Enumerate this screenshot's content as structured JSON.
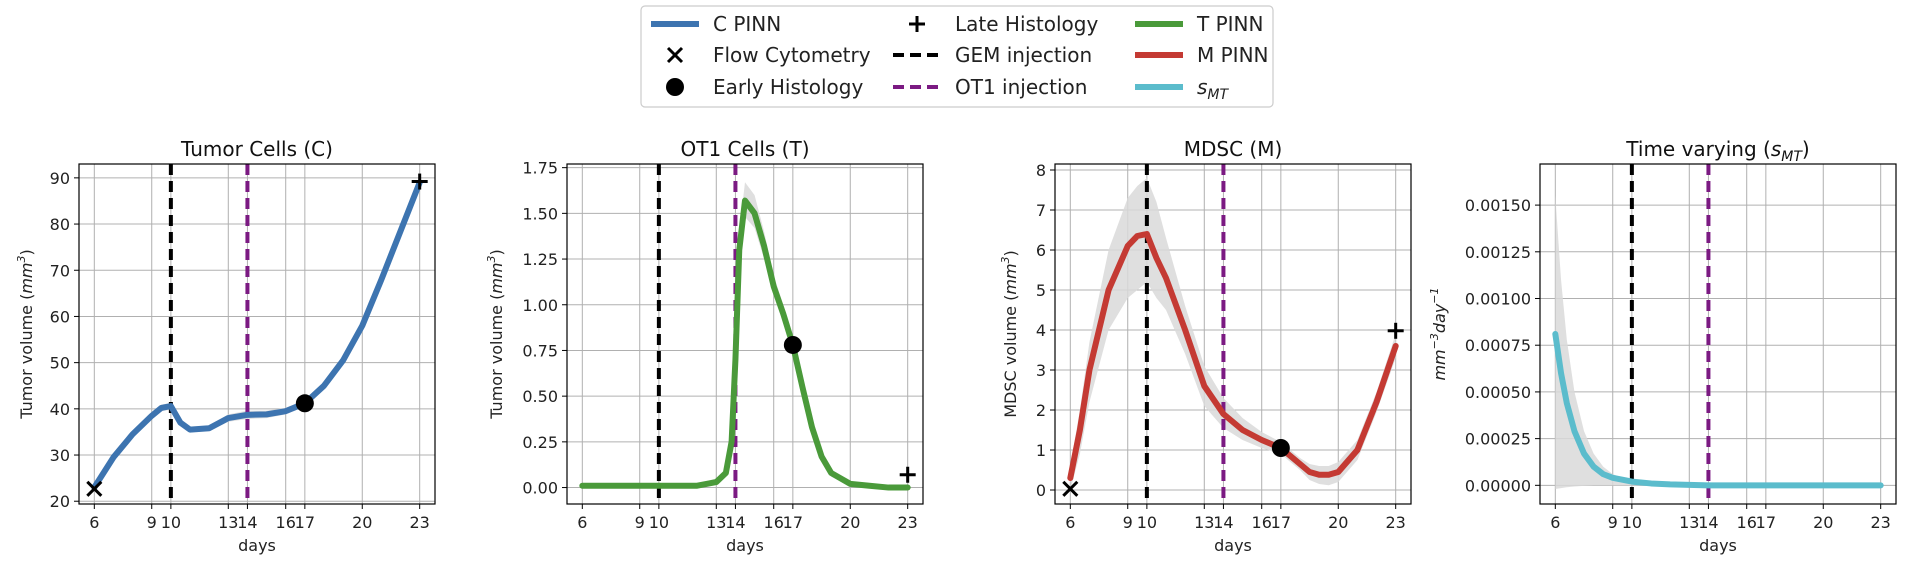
{
  "legend": {
    "items": [
      {
        "label": "C PINN",
        "kind": "line",
        "color": "#3d74b0"
      },
      {
        "label": "Flow Cytometry",
        "kind": "x-marker",
        "color": "#000000"
      },
      {
        "label": "Early Histology",
        "kind": "circle-marker",
        "color": "#000000"
      },
      {
        "label": "Late Histology",
        "kind": "plus-marker",
        "color": "#000000"
      },
      {
        "label": "GEM injection",
        "kind": "dashed",
        "color": "#000000"
      },
      {
        "label": "OT1 injection",
        "kind": "dashed",
        "color": "#7b1a82"
      },
      {
        "label": "T PINN",
        "kind": "line",
        "color": "#4a9a3a"
      },
      {
        "label": "M PINN",
        "kind": "line",
        "color": "#c43a33"
      },
      {
        "label": "s",
        "sub": "MT",
        "kind": "line",
        "color": "#5bbccc"
      }
    ]
  },
  "colors": {
    "gem": "#000000",
    "ot1": "#7b1a82",
    "band": "#d9d9d9",
    "grid": "#b0b0b0"
  },
  "chart_data": [
    {
      "type": "line",
      "title": "Tumor Cells (C)",
      "xlabel": "days",
      "ylabel": "Tumor volume (mm³)",
      "ylabel_parts": [
        "Tumor volume (",
        "mm",
        "3",
        ")"
      ],
      "xticks": [
        6,
        9,
        10,
        13,
        14,
        16,
        17,
        20,
        23
      ],
      "xtick_labels": [
        "6",
        "9",
        "10",
        "13",
        "14",
        "16",
        "17",
        "20",
        "23"
      ],
      "yticks": [
        20,
        30,
        40,
        50,
        60,
        70,
        80,
        90
      ],
      "ytick_labels": [
        "20",
        "30",
        "40",
        "50",
        "60",
        "70",
        "80",
        "90"
      ],
      "xlim": [
        5.2,
        23.8
      ],
      "ylim": [
        19.4,
        93
      ],
      "gem_injection_day": 10,
      "ot1_injection_day": 14,
      "series": [
        {
          "name": "C PINN",
          "color": "#3d74b0",
          "x": [
            6,
            7,
            8,
            9,
            9.5,
            10,
            10.5,
            11,
            12,
            13,
            14,
            15,
            16,
            17,
            18,
            19,
            20,
            21,
            22,
            23
          ],
          "y": [
            23,
            29.5,
            34.5,
            38.5,
            40.2,
            40.6,
            37,
            35.5,
            35.8,
            38,
            38.7,
            38.8,
            39.5,
            41.2,
            45,
            50.5,
            58,
            68,
            78.5,
            89
          ],
          "lower": [
            22.3,
            28.8,
            33.8,
            37.9,
            39.5,
            39.8,
            36.3,
            34.9,
            35.2,
            37.2,
            37.8,
            38.0,
            38.8,
            40.5,
            44.3,
            49.8,
            57.2,
            67.2,
            77.6,
            88.2
          ],
          "upper": [
            23.7,
            30.2,
            35.2,
            39.1,
            40.9,
            41.3,
            37.7,
            36.1,
            36.4,
            38.8,
            39.6,
            39.6,
            40.2,
            41.9,
            45.7,
            51.2,
            58.8,
            68.8,
            79.4,
            89.8
          ]
        }
      ],
      "markers": [
        {
          "type": "flow-cytometry",
          "x": 6,
          "y": 22.7
        },
        {
          "type": "early-histology",
          "x": 17,
          "y": 41.2
        },
        {
          "type": "late-histology",
          "x": 23,
          "y": 89.2
        }
      ]
    },
    {
      "type": "line",
      "title": "OT1 Cells (T)",
      "xlabel": "days",
      "ylabel": "Tumor volume (mm³)",
      "ylabel_parts": [
        "Tumor volume (",
        "mm",
        "3",
        ")"
      ],
      "xticks": [
        6,
        9,
        10,
        13,
        14,
        16,
        17,
        20,
        23
      ],
      "xtick_labels": [
        "6",
        "9",
        "10",
        "13",
        "14",
        "16",
        "17",
        "20",
        "23"
      ],
      "yticks": [
        0,
        0.25,
        0.5,
        0.75,
        1.0,
        1.25,
        1.5,
        1.75
      ],
      "ytick_labels": [
        "0.00",
        "0.25",
        "0.50",
        "0.75",
        "1.00",
        "1.25",
        "1.50",
        "1.75"
      ],
      "xlim": [
        5.2,
        23.8
      ],
      "ylim": [
        -0.09,
        1.77
      ],
      "gem_injection_day": 10,
      "ot1_injection_day": 14,
      "series": [
        {
          "name": "T PINN",
          "color": "#4a9a3a",
          "x": [
            6,
            8,
            10,
            12,
            13,
            13.5,
            13.8,
            14,
            14.2,
            14.5,
            15,
            15.5,
            16,
            16.5,
            17,
            17.5,
            18,
            18.5,
            19,
            20,
            21,
            22,
            23
          ],
          "y": [
            0.01,
            0.01,
            0.01,
            0.01,
            0.03,
            0.08,
            0.25,
            0.7,
            1.3,
            1.57,
            1.5,
            1.32,
            1.1,
            0.95,
            0.78,
            0.55,
            0.33,
            0.17,
            0.08,
            0.02,
            0.01,
            0.0,
            0.0
          ],
          "lower": [
            0.0,
            0.0,
            0.0,
            0.0,
            0.02,
            0.06,
            0.2,
            0.6,
            1.2,
            1.48,
            1.42,
            1.25,
            1.05,
            0.9,
            0.73,
            0.5,
            0.29,
            0.14,
            0.06,
            0.01,
            0.0,
            -0.01,
            -0.01
          ],
          "upper": [
            0.02,
            0.02,
            0.02,
            0.02,
            0.05,
            0.1,
            0.3,
            0.8,
            1.4,
            1.67,
            1.6,
            1.4,
            1.16,
            1.0,
            0.83,
            0.6,
            0.37,
            0.2,
            0.1,
            0.03,
            0.02,
            0.01,
            0.01
          ]
        }
      ],
      "markers": [
        {
          "type": "early-histology",
          "x": 17,
          "y": 0.78
        },
        {
          "type": "late-histology",
          "x": 23,
          "y": 0.07
        }
      ]
    },
    {
      "type": "line",
      "title": "MDSC (M)",
      "xlabel": "days",
      "ylabel": "MDSC volume (mm³)",
      "ylabel_parts": [
        "MDSC volume (",
        "mm",
        "3",
        ")"
      ],
      "xticks": [
        6,
        9,
        10,
        13,
        14,
        16,
        17,
        20,
        23
      ],
      "xtick_labels": [
        "6",
        "9",
        "10",
        "13",
        "14",
        "16",
        "17",
        "20",
        "23"
      ],
      "yticks": [
        0,
        1,
        2,
        3,
        4,
        5,
        6,
        7,
        8
      ],
      "ytick_labels": [
        "0",
        "1",
        "2",
        "3",
        "4",
        "5",
        "6",
        "7",
        "8"
      ],
      "xlim": [
        5.2,
        23.8
      ],
      "ylim": [
        -0.35,
        8.15
      ],
      "gem_injection_day": 10,
      "ot1_injection_day": 14,
      "series": [
        {
          "name": "M PINN",
          "color": "#c43a33",
          "x": [
            6,
            6.5,
            7,
            8,
            9,
            9.5,
            10,
            10.5,
            11,
            12,
            13,
            14,
            15,
            16,
            17,
            18,
            18.5,
            19,
            19.5,
            20,
            21,
            22,
            23
          ],
          "y": [
            0.3,
            1.5,
            3.0,
            5.0,
            6.1,
            6.35,
            6.4,
            5.8,
            5.3,
            4.0,
            2.6,
            1.9,
            1.5,
            1.25,
            1.05,
            0.65,
            0.45,
            0.38,
            0.38,
            0.45,
            1.0,
            2.2,
            3.6
          ],
          "lower": [
            0.0,
            0.9,
            2.2,
            4.0,
            4.8,
            5.0,
            5.2,
            4.8,
            4.5,
            3.4,
            2.1,
            1.55,
            1.25,
            1.05,
            0.9,
            0.5,
            0.25,
            0.15,
            0.12,
            0.2,
            0.75,
            1.95,
            3.3
          ],
          "upper": [
            0.6,
            2.0,
            3.7,
            6.0,
            7.3,
            7.6,
            7.8,
            7.2,
            6.3,
            4.6,
            3.1,
            2.3,
            1.8,
            1.45,
            1.2,
            0.8,
            0.65,
            0.6,
            0.6,
            0.7,
            1.25,
            2.45,
            3.9
          ]
        }
      ],
      "markers": [
        {
          "type": "flow-cytometry",
          "x": 6,
          "y": 0.03
        },
        {
          "type": "early-histology",
          "x": 17,
          "y": 1.05
        },
        {
          "type": "late-histology",
          "x": 23,
          "y": 3.98
        }
      ]
    },
    {
      "type": "line",
      "title": "Time varying (s_MT)",
      "title_parts": [
        "Time varying (",
        "s",
        "MT",
        ")"
      ],
      "xlabel": "days",
      "ylabel": "mm⁻³day⁻¹",
      "xticks": [
        6,
        9,
        10,
        13,
        14,
        16,
        17,
        20,
        23
      ],
      "xtick_labels": [
        "6",
        "9",
        "10",
        "13",
        "14",
        "16",
        "17",
        "20",
        "23"
      ],
      "yticks": [
        0,
        0.00025,
        0.0005,
        0.00075,
        0.001,
        0.00125,
        0.0015
      ],
      "ytick_labels": [
        "0.00000",
        "0.00025",
        "0.00050",
        "0.00075",
        "0.00100",
        "0.00125",
        "0.00150"
      ],
      "xlim": [
        5.2,
        23.8
      ],
      "ylim": [
        -0.0001,
        0.00172
      ],
      "gem_injection_day": 10,
      "ot1_injection_day": 14,
      "series": [
        {
          "name": "s_MT",
          "color": "#5bbccc",
          "x": [
            6,
            6.3,
            6.6,
            7,
            7.5,
            8,
            8.5,
            9,
            9.5,
            10,
            11,
            12,
            14,
            16,
            18,
            20,
            23
          ],
          "y": [
            0.00081,
            0.0006,
            0.00044,
            0.00029,
            0.00017,
            0.0001,
            6e-05,
            4e-05,
            3e-05,
            2e-05,
            1e-05,
            5e-06,
            0.0,
            0.0,
            0.0,
            0.0,
            0.0
          ],
          "lower": [
            -2e-05,
            -1.5e-05,
            -1e-05,
            -6e-06,
            -3e-06,
            0.0,
            0.0,
            0.0,
            0.0,
            0.0,
            0.0,
            0.0,
            0.0,
            0.0,
            0.0,
            0.0,
            0.0
          ],
          "upper": [
            0.00155,
            0.0011,
            0.00078,
            0.0005,
            0.00029,
            0.00017,
            0.0001,
            6e-05,
            4e-05,
            3e-05,
            2e-05,
            1e-05,
            0.0,
            0.0,
            0.0,
            0.0,
            0.0
          ]
        }
      ],
      "markers": []
    }
  ]
}
